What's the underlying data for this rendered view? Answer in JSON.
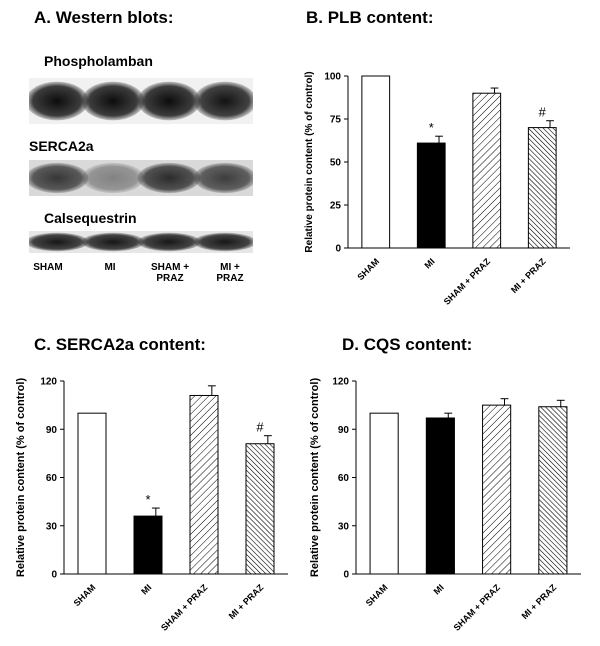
{
  "panel_a": {
    "title": "A.  Western blots:",
    "blots": [
      {
        "label": "Phospholamban",
        "intensity": [
          0.95,
          0.95,
          0.95,
          0.92
        ]
      },
      {
        "label": "SERCA2a",
        "intensity": [
          0.75,
          0.4,
          0.8,
          0.72
        ]
      },
      {
        "label": "Calsequestrin",
        "intensity": [
          0.9,
          0.9,
          0.9,
          0.9
        ]
      }
    ],
    "lanes": [
      "SHAM",
      "MI",
      "SHAM +\nPRAZ",
      "MI +\nPRAZ"
    ]
  },
  "chart_data": [
    {
      "type": "bar",
      "title": "B.  PLB content:",
      "ylabel": "Relative protein content (% of control)",
      "categories": [
        "SHAM",
        "MI",
        "SHAM + PRAZ",
        "MI + PRAZ"
      ],
      "values": [
        100,
        61,
        90,
        70
      ],
      "errors": [
        0,
        4,
        3,
        4
      ],
      "significance": [
        "",
        "*",
        "",
        "#"
      ],
      "fills": [
        "white",
        "black",
        "hatch",
        "hatch-dense"
      ],
      "ylim": [
        0,
        100
      ],
      "yticks": [
        0,
        25,
        50,
        75,
        100
      ]
    },
    {
      "type": "bar",
      "title": "C.  SERCA2a content:",
      "ylabel": "Relative protein content (% of control)",
      "categories": [
        "SHAM",
        "MI",
        "SHAM + PRAZ",
        "MI + PRAZ"
      ],
      "values": [
        100,
        36,
        111,
        81
      ],
      "errors": [
        0,
        5,
        6,
        5
      ],
      "significance": [
        "",
        "*",
        "",
        "#"
      ],
      "fills": [
        "white",
        "black",
        "hatch",
        "hatch-dense"
      ],
      "ylim": [
        0,
        120
      ],
      "yticks": [
        0,
        30,
        60,
        90,
        120
      ]
    },
    {
      "type": "bar",
      "title": "D.  CQS content:",
      "ylabel": "Relative protein content (% of control)",
      "categories": [
        "SHAM",
        "MI",
        "SHAM + PRAZ",
        "MI + PRAZ"
      ],
      "values": [
        100,
        97,
        105,
        104
      ],
      "errors": [
        0,
        3,
        4,
        4
      ],
      "significance": [
        "",
        "",
        "",
        ""
      ],
      "fills": [
        "white",
        "black",
        "hatch",
        "hatch-dense"
      ],
      "ylim": [
        0,
        120
      ],
      "yticks": [
        0,
        30,
        60,
        90,
        120
      ]
    }
  ]
}
